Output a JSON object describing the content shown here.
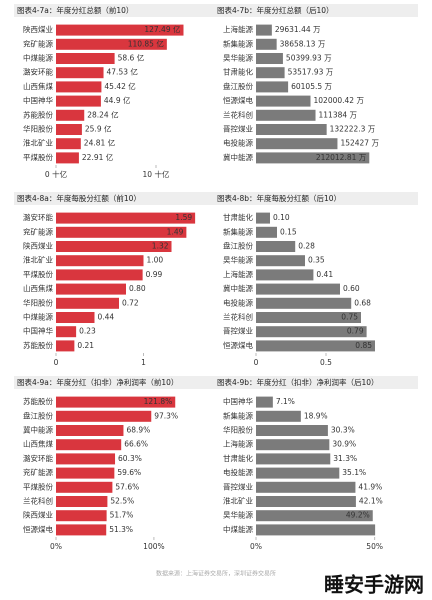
{
  "chart_data": [
    {
      "type": "bar",
      "orientation": "horizontal",
      "title": "图表4-7a：年度分红总额（前10）",
      "color": "#d9363e",
      "categories": [
        "陕西煤业",
        "兖矿能源",
        "中煤能源",
        "潞安环能",
        "山西焦煤",
        "中国神华",
        "苏能股份",
        "华阳股份",
        "淮北矿业",
        "平煤股份"
      ],
      "values": [
        12.749,
        11.085,
        5.86,
        4.753,
        4.542,
        4.49,
        2.824,
        2.59,
        2.481,
        2.291
      ],
      "value_labels": [
        "127.49 亿",
        "110.85 亿",
        "58.6 亿",
        "47.53 亿",
        "45.42 亿",
        "44.9 亿",
        "28.24 亿",
        "25.9 亿",
        "24.81 亿",
        "22.91 亿"
      ],
      "xlim": [
        0,
        14
      ],
      "xticks": [
        {
          "value": 0,
          "label": "0 十亿"
        },
        {
          "value": 10,
          "label": "10 十亿"
        }
      ]
    },
    {
      "type": "bar",
      "orientation": "horizontal",
      "title": "图表4-7b：年度分红总额（后10）",
      "color": "#7b7b7b",
      "categories": [
        "上海能源",
        "新集能源",
        "昊华能源",
        "甘肃能化",
        "盘江股份",
        "恒源煤电",
        "兰花科创",
        "晋控煤业",
        "电投能源",
        "冀中能源"
      ],
      "values": [
        29631.44,
        38658.13,
        50399.93,
        53517.93,
        60105.5,
        102000.42,
        111384,
        132222.3,
        152427,
        212012.81
      ],
      "value_labels": [
        "29631.44 万",
        "38658.13 万",
        "50399.93 万",
        "53517.93 万",
        "60105.5 万",
        "102000.42 万",
        "111384 万",
        "132222.3 万",
        "152427 万",
        "212012.81 万"
      ],
      "xlim": [
        0,
        262000
      ]
    },
    {
      "type": "bar",
      "orientation": "horizontal",
      "title": "图表4-8a：年度每股分红额（前10）",
      "color": "#d9363e",
      "categories": [
        "潞安环能",
        "兖矿能源",
        "陕西煤业",
        "淮北矿业",
        "平煤股份",
        "山西焦煤",
        "华阳股份",
        "中煤能源",
        "中国神华",
        "苏能股份"
      ],
      "values": [
        1.59,
        1.49,
        1.32,
        1.0,
        0.99,
        0.8,
        0.72,
        0.44,
        0.23,
        0.21
      ],
      "value_labels": [
        "1.59",
        "1.49",
        "1.32",
        "1.00",
        "0.99",
        "0.80",
        "0.72",
        "0.44",
        "0.23",
        "0.21"
      ],
      "xlim": [
        0,
        1.6
      ],
      "xticks": [
        0,
        1
      ]
    },
    {
      "type": "bar",
      "orientation": "horizontal",
      "title": "图表4-8b：年度每股分红额（后10）",
      "color": "#7b7b7b",
      "categories": [
        "甘肃能化",
        "新集能源",
        "盘江股份",
        "昊华能源",
        "上海能源",
        "冀中能源",
        "电投能源",
        "兰花科创",
        "晋控煤业",
        "恒源煤电"
      ],
      "values": [
        0.1,
        0.15,
        0.28,
        0.35,
        0.41,
        0.6,
        0.68,
        0.75,
        0.79,
        0.85
      ],
      "value_labels": [
        "0.10",
        "0.15",
        "0.28",
        "0.35",
        "0.41",
        "0.60",
        "0.68",
        "0.75",
        "0.79",
        "0.85"
      ],
      "xlim": [
        0,
        1.0
      ],
      "xticks": [
        0,
        0.5
      ]
    },
    {
      "type": "bar",
      "orientation": "horizontal",
      "title": "图表4-9a：年度分红（扣非）净利润率（前10）",
      "color": "#d9363e",
      "categories": [
        "苏能股份",
        "盘江股份",
        "冀中能源",
        "山西焦煤",
        "潞安环能",
        "兖矿能源",
        "平煤股份",
        "兰花科创",
        "陕西煤业",
        "恒源煤电"
      ],
      "values": [
        121.8,
        97.3,
        68.9,
        66.6,
        60.3,
        59.6,
        57.6,
        52.5,
        51.7,
        51.3
      ],
      "value_labels": [
        "121.8%",
        "97.3%",
        "68.9%",
        "66.6%",
        "60.3%",
        "59.6%",
        "57.6%",
        "52.5%",
        "51.7%",
        "51.3%"
      ],
      "xlim": [
        0,
        143
      ],
      "xticks": [
        {
          "value": 0,
          "label": "0%"
        },
        {
          "value": 100,
          "label": "100%"
        }
      ]
    },
    {
      "type": "bar",
      "orientation": "horizontal",
      "title": "图表4-9b：年度分红（扣非）净利润率（后10）",
      "color": "#7b7b7b",
      "categories": [
        "中国神华",
        "新集能源",
        "华阳股份",
        "上海能源",
        "甘肃能化",
        "电投能源",
        "晋控煤业",
        "淮北矿业",
        "昊华能源",
        "中煤能源"
      ],
      "values": [
        7.1,
        18.9,
        30.3,
        30.9,
        31.3,
        35.1,
        41.9,
        42.1,
        49.2,
        50.2
      ],
      "value_labels": [
        "7.1%",
        "18.9%",
        "30.3%",
        "30.9%",
        "31.3%",
        "35.1%",
        "41.9%",
        "42.1%",
        "49.2%",
        null
      ],
      "xlim": [
        0,
        59
      ],
      "xticks": [
        {
          "value": 0,
          "label": "0%"
        },
        {
          "value": 50,
          "label": "50%"
        }
      ]
    }
  ],
  "footer": {
    "source": "数据来源：上海证券交易所，深圳证券交易所",
    "watermark": "睡安手游网"
  }
}
